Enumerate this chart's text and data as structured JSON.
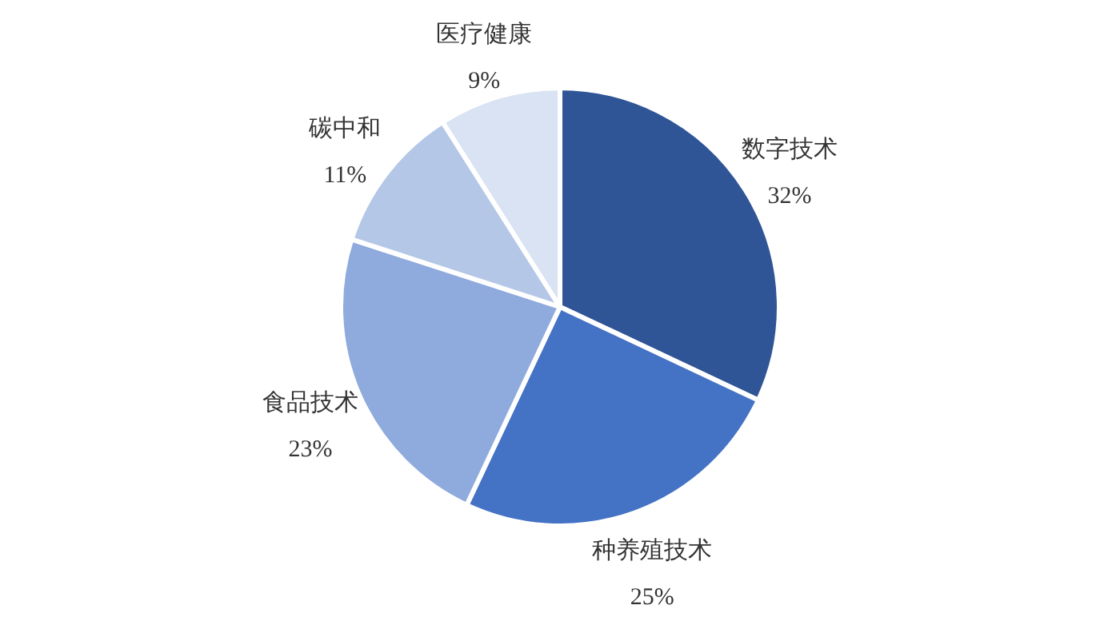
{
  "chart_data": {
    "type": "pie",
    "categories": [
      "数字技术",
      "种养殖技术",
      "食品技术",
      "碳中和",
      "医疗健康"
    ],
    "values": [
      32,
      25,
      23,
      11,
      9
    ],
    "value_labels": [
      "32%",
      "25%",
      "23%",
      "11%",
      "9%"
    ],
    "colors": [
      "#2f5597",
      "#4472c4",
      "#8faadc",
      "#b4c7e7",
      "#dae3f3"
    ],
    "legend": false
  }
}
